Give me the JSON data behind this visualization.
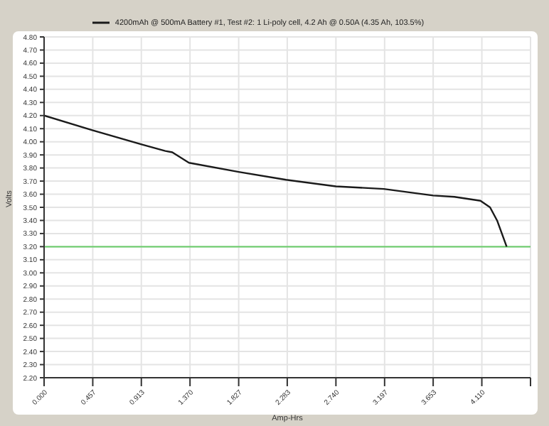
{
  "chart_data": {
    "type": "line",
    "xlabel": "Amp-Hrs",
    "ylabel": "Volts",
    "legend": "top",
    "grid": true,
    "marker": "none",
    "xlim": [
      0,
      4.567
    ],
    "xticks": [
      {
        "value": 0,
        "label": "0.000"
      },
      {
        "value": 0.457,
        "label": "0.457"
      },
      {
        "value": 0.913,
        "label": "0.913"
      },
      {
        "value": 1.37,
        "label": "1.370"
      },
      {
        "value": 1.827,
        "label": "1.827"
      },
      {
        "value": 2.283,
        "label": "2.283"
      },
      {
        "value": 2.74,
        "label": "2.740"
      },
      {
        "value": 3.197,
        "label": "3.197"
      },
      {
        "value": 3.653,
        "label": "3.653"
      },
      {
        "value": 4.11,
        "label": "4.110"
      },
      {
        "value": 4.567,
        "label": null
      }
    ],
    "ylim": [
      2.2,
      4.8
    ],
    "yticks": [
      {
        "value": 2.2,
        "label": "2.20"
      },
      {
        "value": 2.3,
        "label": "2.30"
      },
      {
        "value": 2.4,
        "label": "2.40"
      },
      {
        "value": 2.5,
        "label": "2.50"
      },
      {
        "value": 2.6,
        "label": "2.60"
      },
      {
        "value": 2.7,
        "label": "2.70"
      },
      {
        "value": 2.8,
        "label": "2.80"
      },
      {
        "value": 2.9,
        "label": "2.90"
      },
      {
        "value": 3.0,
        "label": "3.00"
      },
      {
        "value": 3.1,
        "label": "3.10"
      },
      {
        "value": 3.2,
        "label": "3.20"
      },
      {
        "value": 3.3,
        "label": "3.30"
      },
      {
        "value": 3.4,
        "label": "3.40"
      },
      {
        "value": 3.5,
        "label": "3.50"
      },
      {
        "value": 3.6,
        "label": "3.60"
      },
      {
        "value": 3.7,
        "label": "3.70"
      },
      {
        "value": 3.8,
        "label": "3.80"
      },
      {
        "value": 3.9,
        "label": "3.90"
      },
      {
        "value": 4.0,
        "label": "4.00"
      },
      {
        "value": 4.1,
        "label": "4.10"
      },
      {
        "value": 4.2,
        "label": "4.20"
      },
      {
        "value": 4.3,
        "label": "4.30"
      },
      {
        "value": 4.4,
        "label": "4.40"
      },
      {
        "value": 4.5,
        "label": "4.50"
      },
      {
        "value": 4.6,
        "label": "4.60"
      },
      {
        "value": 4.7,
        "label": "4.70"
      },
      {
        "value": 4.8,
        "label": "4.80"
      }
    ],
    "ref_lines": [
      {
        "axis": "y",
        "value": 3.2,
        "color": "#66cc66"
      }
    ],
    "series": [
      {
        "name": "4200mAh @ 500mA Battery #1, Test #2: 1 Li-poly cell, 4.2 Ah @ 0.50A (4.35 Ah, 103.5%)",
        "color": "#1a1a1a",
        "x": [
          0,
          0.447,
          0.915,
          1.138,
          1.204,
          1.36,
          1.827,
          2.273,
          2.74,
          3.19,
          3.653,
          3.853,
          4.097,
          4.187,
          4.253,
          4.343
        ],
        "values": [
          4.2,
          4.09,
          3.98,
          3.93,
          3.92,
          3.84,
          3.77,
          3.71,
          3.66,
          3.64,
          3.59,
          3.58,
          3.55,
          3.5,
          3.4,
          3.2
        ]
      }
    ]
  }
}
